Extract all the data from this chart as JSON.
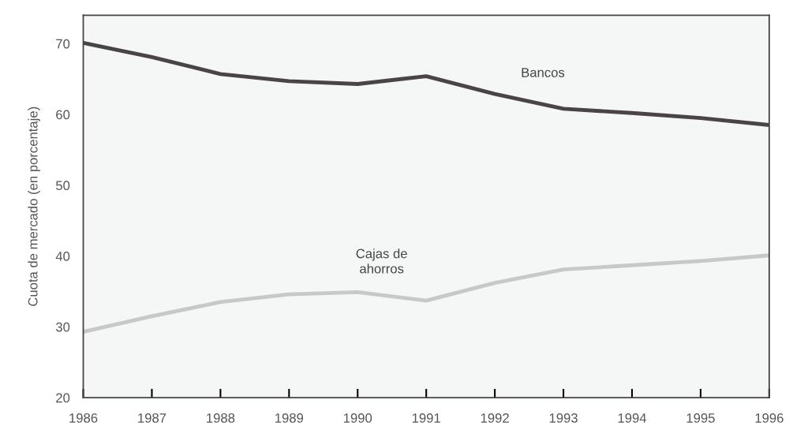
{
  "chart_data": {
    "type": "line",
    "ylabel": "Cuota de mercado (en porcentaje)",
    "x": [
      1986,
      1987,
      1988,
      1989,
      1990,
      1991,
      1992,
      1993,
      1994,
      1995,
      1996
    ],
    "series": [
      {
        "name": "Bancos",
        "color": "#4a4446",
        "values": [
          70.1,
          68.1,
          65.7,
          64.7,
          64.3,
          65.4,
          62.9,
          60.8,
          60.2,
          59.5,
          58.5
        ]
      },
      {
        "name": "Cajas de\nahorros",
        "color": "#c8c8c8",
        "values": [
          29.3,
          31.5,
          33.5,
          34.6,
          34.9,
          33.7,
          36.2,
          38.1,
          38.7,
          39.3,
          40.1
        ]
      }
    ],
    "xlim": [
      1986,
      1996
    ],
    "ylim": [
      20,
      74
    ],
    "xticks": [
      1986,
      1987,
      1988,
      1989,
      1990,
      1991,
      1992,
      1993,
      1994,
      1995,
      1996
    ],
    "yticks": [
      20,
      30,
      40,
      50,
      60,
      70
    ],
    "grid": false,
    "legend": false,
    "marker": "none",
    "line_style": "solid"
  }
}
